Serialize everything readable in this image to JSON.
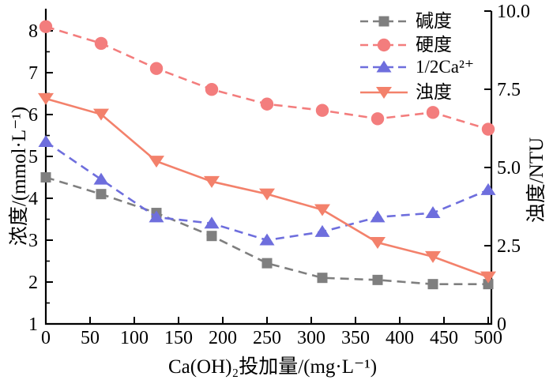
{
  "chart_data": {
    "type": "line",
    "title": "",
    "xlabel": "Ca(OH)₂投加量/(mg·L⁻¹)",
    "ylabel_left": "浓度/(mmol·L⁻¹)",
    "ylabel_right": "浊度/NTU",
    "xlim": [
      0,
      500
    ],
    "ylim_left": [
      1,
      8.5
    ],
    "ylim_right": [
      0,
      10
    ],
    "grid": false,
    "legend_position": "upper-right-inside-no-frame",
    "x_ticks": [
      0,
      50,
      100,
      150,
      200,
      250,
      300,
      350,
      400,
      450,
      500
    ],
    "y_ticks_left": [
      "1",
      "2",
      "3",
      "4",
      "5",
      "6",
      "7",
      "8"
    ],
    "y_ticks_right": [
      0,
      2.5,
      5.0,
      7.5,
      10.0
    ],
    "y_tick_right_labels": [
      "0",
      "2.5",
      "5.0",
      "7.5",
      "10.0"
    ],
    "x": [
      0,
      62.5,
      125,
      187.5,
      250,
      312.5,
      375,
      437.5,
      500
    ],
    "series": [
      {
        "name": "碱度",
        "axis": "left",
        "marker": "square",
        "line_style": "dashed",
        "color": "#7f7f7f",
        "values": [
          4.5,
          4.1,
          3.65,
          3.1,
          2.45,
          2.1,
          2.05,
          1.95,
          1.95
        ]
      },
      {
        "name": "硬度",
        "axis": "left",
        "marker": "circle",
        "line_style": "dashed",
        "color": "#f37d7d",
        "values": [
          8.1,
          7.7,
          7.1,
          6.6,
          6.25,
          6.1,
          5.9,
          6.05,
          5.65
        ]
      },
      {
        "name": "1/2Ca²⁺",
        "axis": "left",
        "marker": "triangle-up",
        "line_style": "dashed",
        "color": "#6e6edd",
        "values": [
          5.35,
          4.45,
          3.55,
          3.4,
          3.0,
          3.2,
          3.55,
          3.65,
          4.2
        ]
      },
      {
        "name": "浊度",
        "axis": "right",
        "marker": "triangle-down",
        "line_style": "solid",
        "color": "#f3816b",
        "values": [
          7.2,
          6.7,
          5.2,
          4.55,
          4.15,
          3.65,
          2.6,
          2.15,
          1.5
        ]
      }
    ],
    "axis_color": "#000000"
  }
}
